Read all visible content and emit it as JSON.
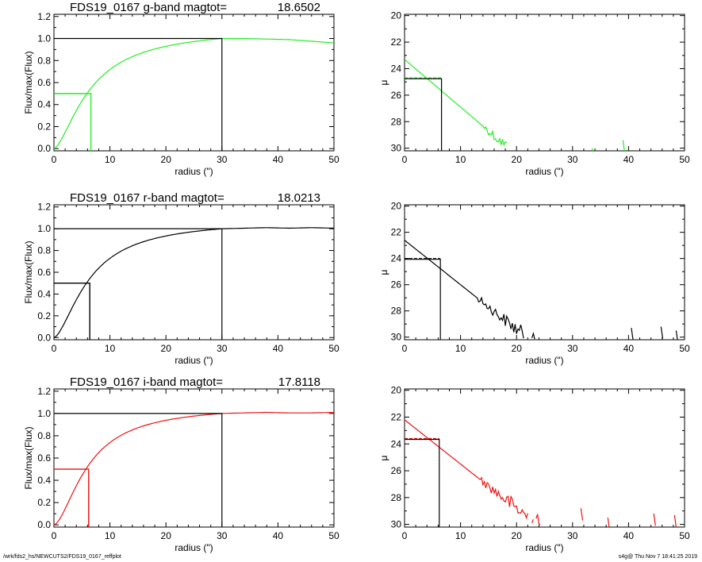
{
  "footer": {
    "path": "/wrk/fds2_hs/NEWCUTS2/FDS19_0167_reffplot",
    "stamp": "s4g@  Thu Nov  7 18:41:25 2019"
  },
  "chart_data": [
    {
      "type": "line",
      "panel": "flux",
      "band": "g",
      "title_name": "FDS19_0167 g-band  magtot=",
      "title_value": "18.6502",
      "xlabel": "radius (\")",
      "ylabel": "Flux/max(Flux)",
      "xlim": [
        0,
        50
      ],
      "ylim": [
        -0.02,
        1.22
      ],
      "xticks": [
        "0",
        "10",
        "20",
        "30",
        "40",
        "50"
      ],
      "yticks": [
        "0.0",
        "0.2",
        "0.4",
        "0.6",
        "0.8",
        "1.0",
        "1.2"
      ],
      "color": "#22ee22",
      "profile": {
        "type": "growth",
        "r_half": 6.6,
        "rise": 1.55,
        "tail": [
          1.0,
          1.0,
          0.995,
          0.99,
          0.975,
          0.96
        ]
      },
      "half_light": {
        "r": 6.6,
        "y": 0.5
      },
      "total": {
        "r": 30.0,
        "y": 1.0
      }
    },
    {
      "type": "line",
      "panel": "sb",
      "band": "g",
      "xlabel": "radius (\")",
      "ylabel": "μ",
      "xlim": [
        0,
        50
      ],
      "ylim": [
        30.2,
        19.9
      ],
      "xticks": [
        "0",
        "10",
        "20",
        "30",
        "40",
        "50"
      ],
      "yticks": [
        "20",
        "22",
        "24",
        "26",
        "28",
        "30"
      ],
      "color": "#22ee22",
      "profile": {
        "type": "sb",
        "mu0": 23.3,
        "slope": 0.36,
        "noise_start": 14,
        "noise_amp": 1.2,
        "cut": 30.2,
        "far_segments": [
          [
            33.5,
            30.0
          ],
          [
            39.0,
            29.4
          ]
        ]
      },
      "half_light": {
        "r": 6.6,
        "mu": 24.7
      },
      "total": {
        "r": 30.0
      }
    },
    {
      "type": "line",
      "panel": "flux",
      "band": "r",
      "title_name": "FDS19_0167 r-band  magtot=",
      "title_value": "18.0213",
      "xlabel": "radius (\")",
      "ylabel": "Flux/max(Flux)",
      "xlim": [
        0,
        50
      ],
      "ylim": [
        -0.02,
        1.22
      ],
      "xticks": [
        "0",
        "10",
        "20",
        "30",
        "40",
        "50"
      ],
      "yticks": [
        "0.0",
        "0.2",
        "0.4",
        "0.6",
        "0.8",
        "1.0",
        "1.2"
      ],
      "color": "#000000",
      "profile": {
        "type": "growth",
        "r_half": 6.4,
        "rise": 1.6,
        "tail": [
          1.0,
          1.005,
          1.01,
          1.005,
          1.01,
          1.005
        ]
      },
      "half_light": {
        "r": 6.4,
        "y": 0.5
      },
      "total": {
        "r": 30.0,
        "y": 1.0
      }
    },
    {
      "type": "line",
      "panel": "sb",
      "band": "r",
      "xlabel": "radius (\")",
      "ylabel": "μ",
      "xlim": [
        0,
        50
      ],
      "ylim": [
        30.2,
        19.9
      ],
      "xticks": [
        "0",
        "10",
        "20",
        "30",
        "40",
        "50"
      ],
      "yticks": [
        "20",
        "22",
        "24",
        "26",
        "28",
        "30"
      ],
      "color": "#000000",
      "profile": {
        "type": "sb",
        "mu0": 22.6,
        "slope": 0.34,
        "noise_start": 13,
        "noise_amp": 1.0,
        "cut": 30.2,
        "far_segments": [
          [
            40.5,
            29.3
          ],
          [
            45.8,
            29.2
          ],
          [
            48.5,
            29.5
          ]
        ]
      },
      "half_light": {
        "r": 6.4,
        "mu": 24.0
      },
      "total": {
        "r": 30.0
      }
    },
    {
      "type": "line",
      "panel": "flux",
      "band": "i",
      "title_name": "FDS19_0167 i-band  magtot=",
      "title_value": "17.8118",
      "xlabel": "radius (\")",
      "ylabel": "Flux/max(Flux)",
      "xlim": [
        0,
        50
      ],
      "ylim": [
        -0.02,
        1.22
      ],
      "xticks": [
        "0",
        "10",
        "20",
        "30",
        "40",
        "50"
      ],
      "yticks": [
        "0.0",
        "0.2",
        "0.4",
        "0.6",
        "0.8",
        "1.0",
        "1.2"
      ],
      "color": "#ee1111",
      "profile": {
        "type": "growth",
        "r_half": 6.2,
        "rise": 1.65,
        "tail": [
          1.0,
          1.005,
          1.01,
          1.005,
          1.005,
          1.01
        ]
      },
      "half_light": {
        "r": 6.2,
        "y": 0.5
      },
      "total": {
        "r": 30.0,
        "y": 1.0
      }
    },
    {
      "type": "line",
      "panel": "sb",
      "band": "i",
      "xlabel": "radius (\")",
      "ylabel": "μ",
      "xlim": [
        0,
        50
      ],
      "ylim": [
        30.2,
        19.9
      ],
      "xticks": [
        "0",
        "10",
        "20",
        "30",
        "40",
        "50"
      ],
      "yticks": [
        "20",
        "22",
        "24",
        "26",
        "28",
        "30"
      ],
      "color": "#ee1111",
      "profile": {
        "type": "sb",
        "mu0": 22.2,
        "slope": 0.33,
        "noise_start": 13.5,
        "noise_amp": 1.3,
        "cut": 30.2,
        "far_segments": [
          [
            31.5,
            28.8
          ],
          [
            36.3,
            29.5
          ],
          [
            44.5,
            29.2
          ],
          [
            48.2,
            29.3
          ]
        ]
      },
      "half_light": {
        "r": 6.2,
        "mu": 23.6
      },
      "total": {
        "r": 30.0
      }
    }
  ]
}
